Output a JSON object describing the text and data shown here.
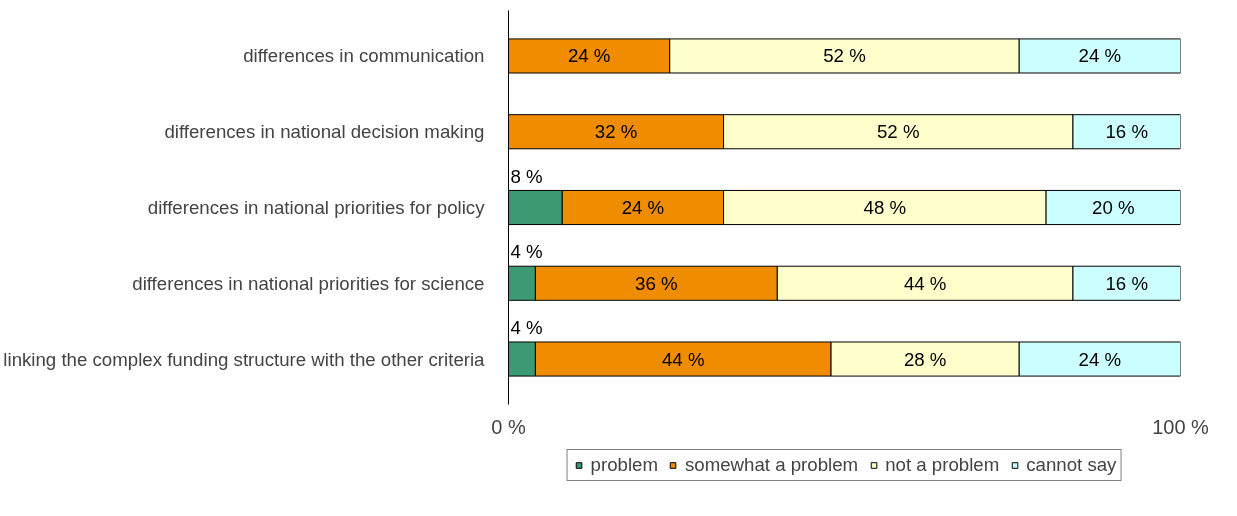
{
  "chart_data": {
    "type": "bar",
    "orientation": "horizontal",
    "stacked": true,
    "categories": [
      "differences in communication",
      "differences in national decision making",
      "differences in national priorities for policy",
      "differences in national priorities for science",
      "linking the complex funding structure with the other criteria"
    ],
    "series": [
      {
        "name": "problem",
        "color": "#3c9a72",
        "values": [
          0,
          0,
          8,
          4,
          4
        ],
        "value_labels": [
          null,
          null,
          "8 %",
          "4 %",
          "4 %"
        ]
      },
      {
        "name": "somewhat a problem",
        "color": "#f08c00",
        "values": [
          24,
          32,
          24,
          36,
          44
        ],
        "value_labels": [
          "24 %",
          "32 %",
          "24 %",
          "36 %",
          "44 %"
        ]
      },
      {
        "name": "not a problem",
        "color": "#ffffcc",
        "values": [
          52,
          52,
          48,
          44,
          28
        ],
        "value_labels": [
          "52 %",
          "52 %",
          "48 %",
          "44 %",
          "28 %"
        ]
      },
      {
        "name": "cannot say",
        "color": "#ccffff",
        "values": [
          24,
          16,
          20,
          16,
          24
        ],
        "value_labels": [
          "24 %",
          "16 %",
          "20 %",
          "16 %",
          "24 %"
        ]
      }
    ],
    "xlim": [
      0,
      100
    ],
    "xticks": [
      {
        "value": 0,
        "label": "0 %"
      },
      {
        "value": 100,
        "label": "100 %"
      }
    ],
    "legend": "bottom"
  }
}
